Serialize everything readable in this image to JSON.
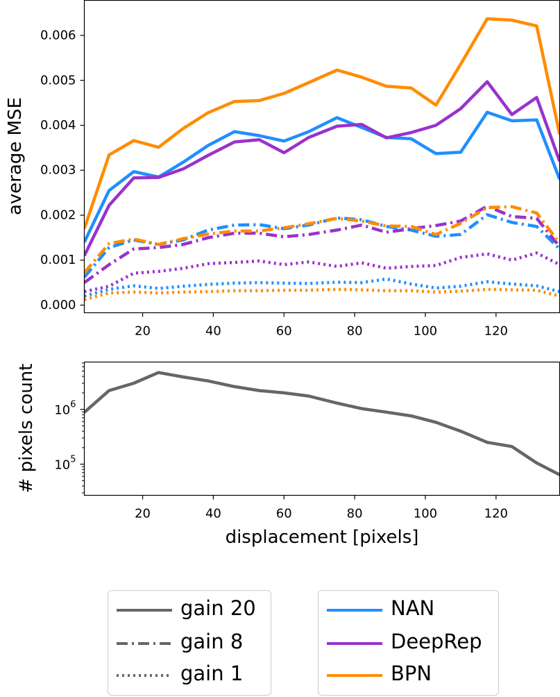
{
  "chart_data": [
    {
      "type": "line",
      "title": "",
      "xlabel": "",
      "ylabel": "average MSE",
      "xlim": [
        3.5,
        138
      ],
      "ylim": [
        -0.00017,
        0.00678
      ],
      "xticks": [
        20,
        40,
        60,
        80,
        100,
        120
      ],
      "yticks": [
        0.0,
        0.001,
        0.002,
        0.003,
        0.004,
        0.005,
        0.006
      ],
      "ytick_labels": [
        "0.000",
        "0.001",
        "0.002",
        "0.003",
        "0.004",
        "0.005",
        "0.006"
      ],
      "x": [
        3.5,
        10.5,
        17.5,
        24.5,
        31.5,
        38.5,
        46,
        53,
        60,
        67,
        75,
        82,
        89,
        96,
        103,
        110,
        117.5,
        124.5,
        131.5,
        138
      ],
      "series": [
        {
          "name": "NAN",
          "gain": "gain 20",
          "color": "#1f8fff",
          "values": [
            0.0014,
            0.00255,
            0.00297,
            0.00285,
            0.00318,
            0.00355,
            0.00386,
            0.00377,
            0.00365,
            0.00386,
            0.00417,
            0.00395,
            0.00373,
            0.0037,
            0.00337,
            0.0034,
            0.00429,
            0.0041,
            0.00412,
            0.0028
          ]
        },
        {
          "name": "DeepRep",
          "gain": "gain 20",
          "color": "#9932cc",
          "values": [
            0.0011,
            0.00222,
            0.00283,
            0.00284,
            0.00303,
            0.00333,
            0.00363,
            0.00368,
            0.00339,
            0.00373,
            0.00398,
            0.00402,
            0.00372,
            0.00384,
            0.004,
            0.00437,
            0.00497,
            0.00424,
            0.00462,
            0.0032
          ]
        },
        {
          "name": "BPN",
          "gain": "gain 20",
          "color": "#ff8c00",
          "values": [
            0.0017,
            0.00334,
            0.00366,
            0.00351,
            0.00393,
            0.00428,
            0.00453,
            0.00455,
            0.00471,
            0.00495,
            0.00523,
            0.00507,
            0.00487,
            0.00483,
            0.00445,
            0.00536,
            0.00637,
            0.00634,
            0.00621,
            0.0038
          ]
        },
        {
          "name": "NAN",
          "gain": "gain 8",
          "color": "#1f8fff",
          "values": [
            0.00062,
            0.00128,
            0.00145,
            0.00135,
            0.00145,
            0.00167,
            0.00178,
            0.00179,
            0.0017,
            0.00178,
            0.00194,
            0.0019,
            0.00175,
            0.00167,
            0.00153,
            0.00157,
            0.00201,
            0.00184,
            0.00175,
            0.00125
          ]
        },
        {
          "name": "DeepRep",
          "gain": "gain 8",
          "color": "#9932cc",
          "values": [
            0.0005,
            0.0009,
            0.00125,
            0.00128,
            0.00135,
            0.0015,
            0.0016,
            0.0016,
            0.00152,
            0.00157,
            0.00167,
            0.00178,
            0.00162,
            0.0017,
            0.00177,
            0.00187,
            0.0022,
            0.00197,
            0.00193,
            0.0013
          ]
        },
        {
          "name": "BPN",
          "gain": "gain 8",
          "color": "#ff8c00",
          "values": [
            0.00072,
            0.00137,
            0.00147,
            0.00135,
            0.00148,
            0.00158,
            0.00165,
            0.00165,
            0.00172,
            0.00181,
            0.00193,
            0.00187,
            0.00176,
            0.00175,
            0.00157,
            0.00182,
            0.00217,
            0.00219,
            0.00205,
            0.00138
          ]
        },
        {
          "name": "NAN",
          "gain": "gain 1",
          "color": "#1f8fff",
          "values": [
            0.0002,
            0.00035,
            0.00043,
            0.00037,
            0.00042,
            0.00046,
            0.00049,
            0.0005,
            0.00049,
            0.00048,
            0.00051,
            0.0005,
            0.00058,
            0.00047,
            0.00038,
            0.00042,
            0.00052,
            0.00047,
            0.00043,
            0.0003
          ]
        },
        {
          "name": "DeepRep",
          "gain": "gain 1",
          "color": "#9932cc",
          "values": [
            0.0003,
            0.00042,
            0.00071,
            0.00075,
            0.00082,
            0.00092,
            0.00095,
            0.00098,
            0.0009,
            0.00096,
            0.00086,
            0.00094,
            0.00082,
            0.00086,
            0.00088,
            0.00106,
            0.00114,
            0.001,
            0.00116,
            0.0009
          ]
        },
        {
          "name": "BPN",
          "gain": "gain 1",
          "color": "#ff8c00",
          "values": [
            0.00012,
            0.00027,
            0.00029,
            0.00027,
            0.00029,
            0.0003,
            0.00032,
            0.00032,
            0.00033,
            0.00033,
            0.00035,
            0.00034,
            0.00032,
            0.00032,
            0.00029,
            0.00031,
            0.00035,
            0.00034,
            0.00033,
            0.0002
          ]
        }
      ],
      "grid": false
    },
    {
      "type": "line",
      "title": "",
      "xlabel": "displacement [pixels]",
      "ylabel": "# pixels count",
      "yscale": "log",
      "xlim": [
        3.5,
        138
      ],
      "ylim": [
        27000,
        7300000
      ],
      "xticks": [
        20,
        40,
        60,
        80,
        100,
        120
      ],
      "yticks": [
        100000,
        1000000
      ],
      "ytick_labels": [
        {
          "base": "10",
          "exp": "5"
        },
        {
          "base": "10",
          "exp": "6"
        }
      ],
      "x": [
        3.5,
        10.5,
        17.5,
        24.5,
        31.5,
        38.5,
        46,
        53,
        60,
        67,
        75,
        82,
        89,
        96,
        103,
        110,
        117.5,
        124.5,
        131.5,
        138
      ],
      "series": [
        {
          "color": "#666666",
          "values": [
            880000,
            2200000,
            3000000,
            4700000,
            3900000,
            3300000,
            2600000,
            2200000,
            2000000,
            1750000,
            1300000,
            1030000,
            890000,
            760000,
            580000,
            400000,
            250000,
            210000,
            105000,
            64000
          ]
        }
      ],
      "grid": false
    }
  ],
  "legend_styles": {
    "items": [
      {
        "label": "gain 20",
        "dash": "solid"
      },
      {
        "label": "gain 8",
        "dash": "dashdot"
      },
      {
        "label": "gain 1",
        "dash": "dotted"
      }
    ],
    "color": "#666666"
  },
  "legend_methods": {
    "items": [
      {
        "label": "NAN",
        "color": "#1f8fff"
      },
      {
        "label": "DeepRep",
        "color": "#9932cc"
      },
      {
        "label": "BPN",
        "color": "#ff8c00"
      }
    ]
  }
}
